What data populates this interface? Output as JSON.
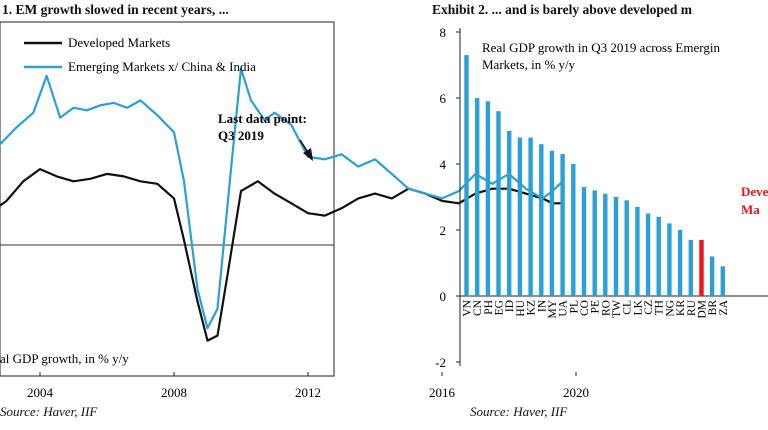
{
  "exhibit1": {
    "title": "1. EM growth slowed in recent years, ...",
    "source": "Source: Haver, IIF",
    "chart_data": {
      "type": "line",
      "ylabel": "al GDP growth, in % y/y",
      "x_ticks": [
        "2004",
        "2008",
        "2012",
        "2016",
        "2020"
      ],
      "annotation": [
        "Last data point:",
        "Q3 2019"
      ],
      "series": [
        {
          "name": "Developed Markets",
          "color": "#111111",
          "x": [
            2001.8,
            2002.5,
            2003,
            2003.5,
            2004,
            2004.5,
            2005,
            2005.5,
            2006,
            2006.5,
            2007,
            2007.5,
            2008,
            2008.3,
            2008.7,
            2009,
            2009.3,
            2009.6,
            2010,
            2010.5,
            2011,
            2011.5,
            2012,
            2012.5,
            2013,
            2013.5,
            2014,
            2014.5,
            2015,
            2015.5,
            2016,
            2016.5,
            2017,
            2017.5,
            2018,
            2018.5,
            2019,
            2019.3,
            2019.6
          ],
          "values": [
            1.6,
            1.3,
            1.8,
            2.6,
            3.1,
            2.8,
            2.6,
            2.7,
            2.9,
            2.8,
            2.6,
            2.5,
            1.9,
            0.2,
            -2.3,
            -3.9,
            -3.7,
            -1.2,
            2.2,
            2.6,
            2.1,
            1.7,
            1.3,
            1.2,
            1.5,
            1.9,
            2.1,
            1.9,
            2.3,
            2.1,
            1.8,
            1.7,
            2.1,
            2.3,
            2.3,
            2.1,
            1.9,
            1.7,
            1.7
          ]
        },
        {
          "name": "Emerging Markets x/ China & India",
          "color": "#2aa0d4",
          "x": [
            2001.8,
            2002.3,
            2002.8,
            2003.3,
            2003.8,
            2004.2,
            2004.6,
            2005,
            2005.4,
            2005.8,
            2006.2,
            2006.6,
            2007,
            2007.5,
            2008,
            2008.3,
            2008.7,
            2009,
            2009.3,
            2009.7,
            2010,
            2010.3,
            2010.7,
            2011,
            2011.5,
            2012,
            2012.5,
            2013,
            2013.5,
            2014,
            2014.5,
            2015,
            2015.5,
            2016,
            2016.5,
            2017,
            2017.5,
            2018,
            2018.5,
            2019,
            2019.3,
            2019.6
          ],
          "values": [
            1.9,
            2.9,
            4.1,
            4.8,
            5.4,
            6.9,
            5.2,
            5.6,
            5.5,
            5.7,
            5.8,
            5.6,
            5.9,
            5.3,
            4.6,
            2.6,
            -1.8,
            -3.4,
            -2.6,
            3.1,
            7.2,
            5.9,
            5.1,
            5.4,
            4.9,
            3.6,
            3.5,
            3.7,
            3.2,
            3.5,
            2.9,
            2.3,
            2.1,
            1.9,
            2.2,
            2.9,
            2.5,
            2.9,
            2.3,
            1.9,
            2.2,
            2.6
          ]
        }
      ]
    }
  },
  "exhibit2": {
    "title": "Exhibit 2. ... and is barely above developed m",
    "source": "Source: Haver, IIF",
    "chart_data": {
      "type": "bar",
      "subtitle": [
        "Real GDP growth in Q3 2019 across Emergin",
        "Markets, in % y/y"
      ],
      "ylim": [
        -2,
        8
      ],
      "y_ticks": [
        "8",
        "6",
        "4",
        "2",
        "0",
        "-2"
      ],
      "highlight_label": [
        "Deve",
        "Ma"
      ],
      "highlight_category": "DM",
      "categories": [
        "VN",
        "CN",
        "PH",
        "EG",
        "ID",
        "HU",
        "KZ",
        "IN",
        "MY",
        "UA",
        "PL",
        "CO",
        "PE",
        "RO",
        "TW",
        "CL",
        "LK",
        "CZ",
        "TH",
        "NG",
        "KR",
        "RU",
        "DM",
        "BR",
        "ZA"
      ],
      "values": [
        7.3,
        6.0,
        5.9,
        5.6,
        5.0,
        4.8,
        4.8,
        4.6,
        4.4,
        4.3,
        4.0,
        3.3,
        3.2,
        3.1,
        3.0,
        2.9,
        2.7,
        2.5,
        2.4,
        2.2,
        2.0,
        1.7,
        1.7,
        1.2,
        0.9
      ],
      "bar_color": "#2aa0d4",
      "highlight_color": "#e8161b"
    }
  }
}
